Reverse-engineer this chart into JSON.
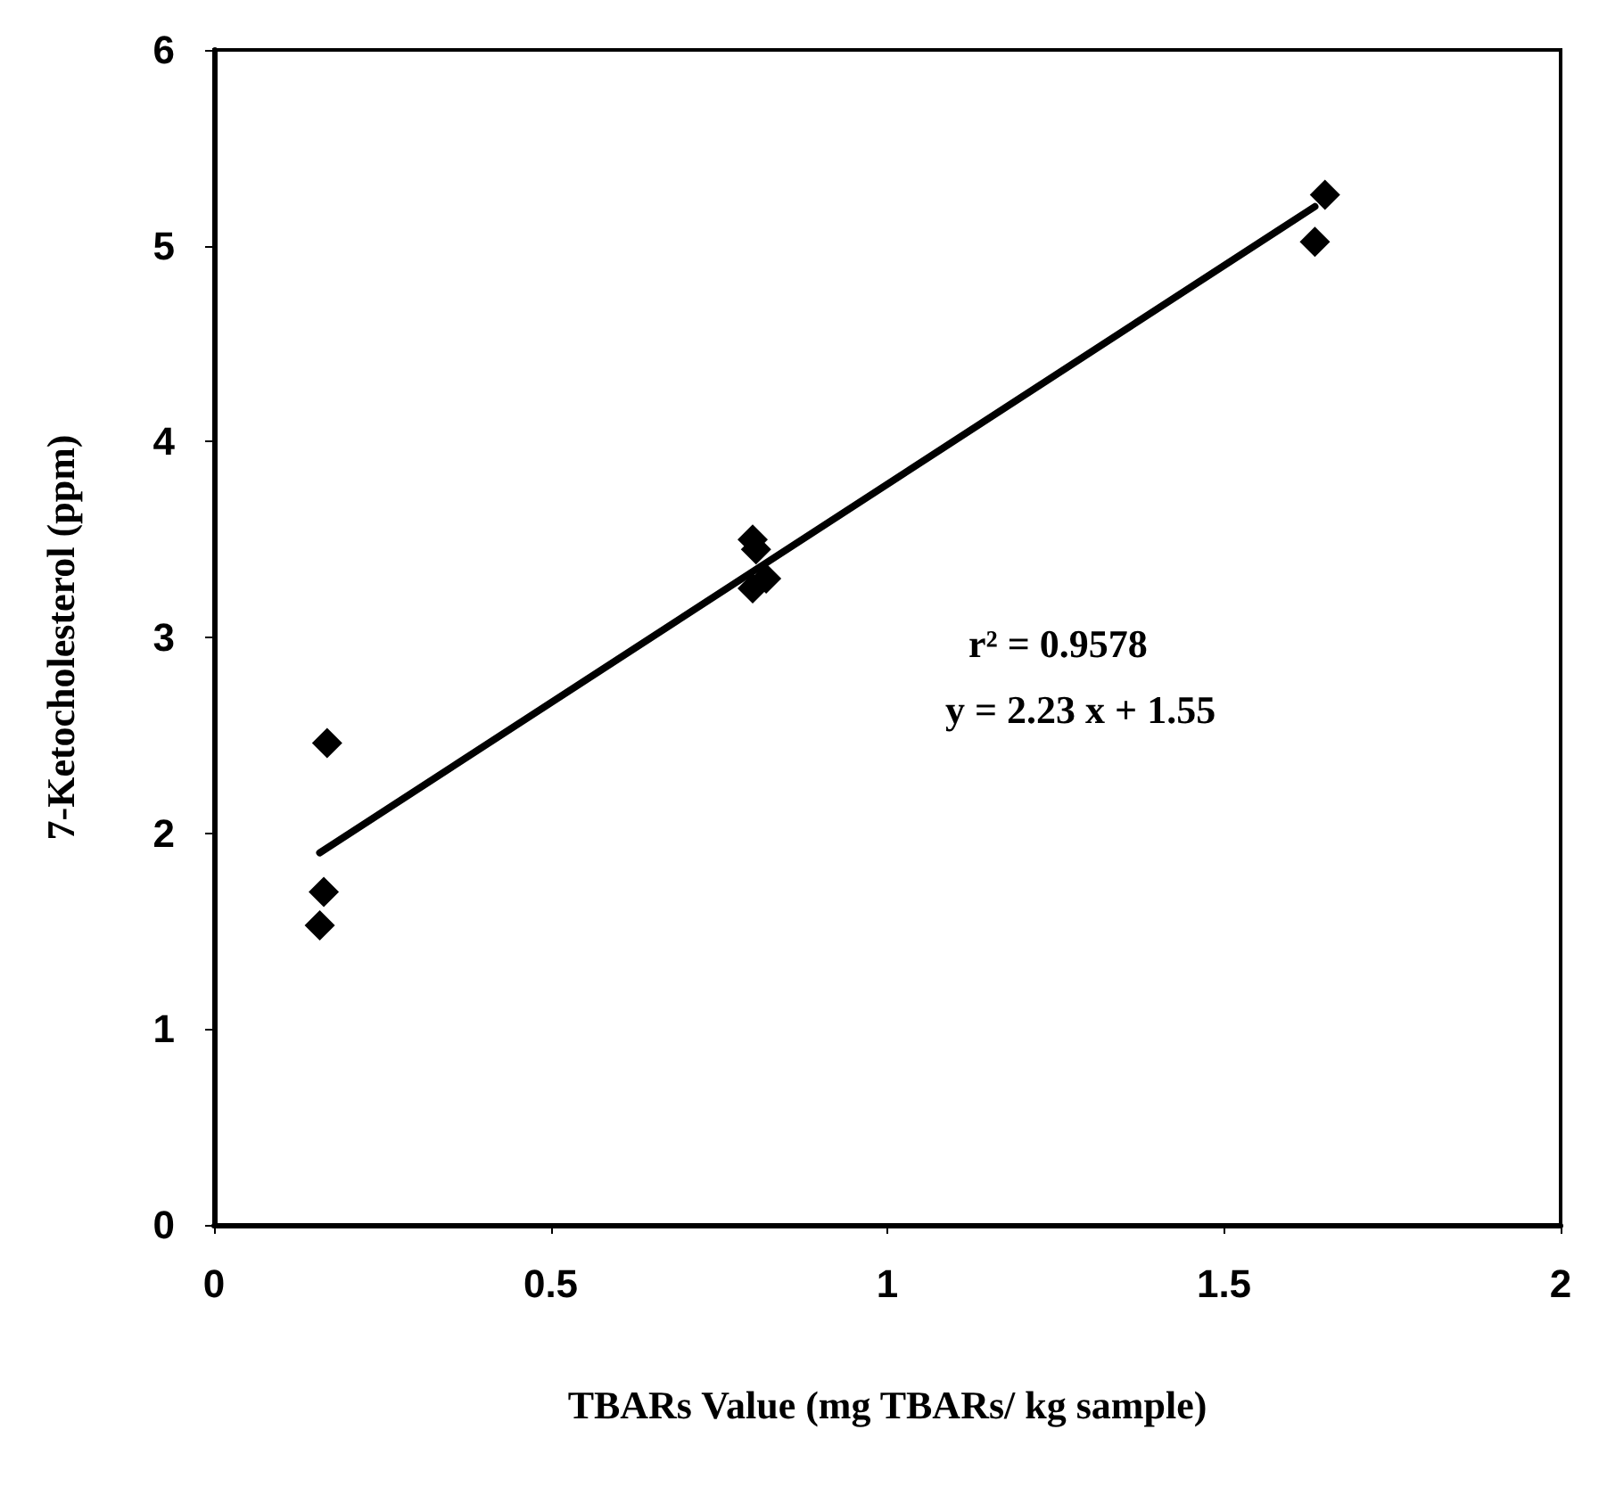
{
  "chart_data": {
    "type": "scatter",
    "xlabel": "TBARs Value (mg TBARs/ kg sample)",
    "ylabel": "7-Ketocholesterol (ppm)",
    "xlim": [
      0,
      2
    ],
    "xticks": [
      0,
      0.5,
      1,
      1.5,
      2
    ],
    "ylim": [
      0,
      6
    ],
    "yticks": [
      0,
      1,
      2,
      3,
      4,
      5,
      6
    ],
    "grid": false,
    "marker": "diamond",
    "series": [
      {
        "color": "#000000",
        "x": [
          0.168,
          0.163,
          0.157,
          0.8,
          0.805,
          0.82,
          0.8,
          1.65,
          1.635
        ],
        "values": [
          2.46,
          1.7,
          1.53,
          3.5,
          3.45,
          3.3,
          3.25,
          5.26,
          5.02
        ]
      },
      {
        "type": "line",
        "color": "#000000",
        "marker": "none",
        "line_style": "solid",
        "x": [
          0.157,
          1.635
        ],
        "values": [
          1.9,
          5.2
        ]
      }
    ],
    "annotations": [
      "r² = 0.9578",
      "y = 2.23 x + 1.55"
    ]
  }
}
